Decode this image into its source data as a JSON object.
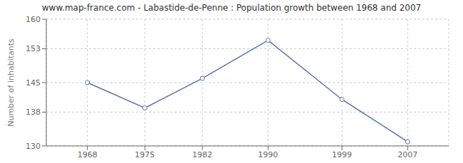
{
  "chart_data": {
    "type": "line",
    "title": "www.map-france.com - Labastide-de-Penne : Population growth between 1968 and 2007",
    "ylabel": "Number of inhabitants",
    "x": [
      1968,
      1975,
      1982,
      1990,
      1999,
      2007
    ],
    "values": [
      145,
      139,
      146,
      155,
      141,
      131
    ],
    "color": "#5577aa",
    "marker": "circle",
    "xlim": [
      1963,
      2012
    ],
    "xticks": [
      1968,
      1975,
      1982,
      1990,
      1999,
      2007
    ],
    "ylim": [
      130,
      160
    ],
    "yticks": [
      130,
      138,
      145,
      153,
      160
    ],
    "grid": true
  }
}
